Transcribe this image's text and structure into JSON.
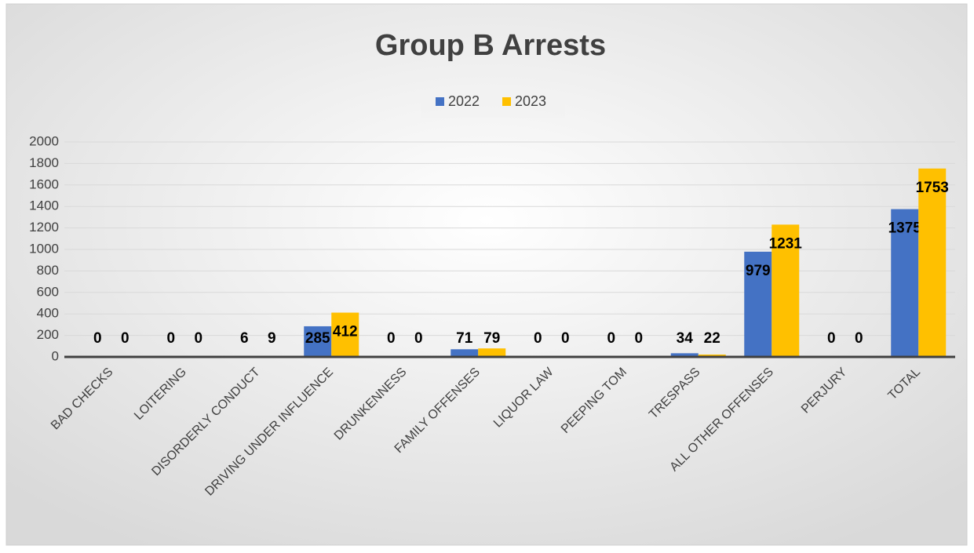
{
  "chart_data": {
    "type": "bar",
    "title": "Group B Arrests",
    "categories": [
      "BAD CHECKS",
      "LOITERING",
      "DISORDERLY CONDUCT",
      "DRIVING UNDER INFLUENCE",
      "DRUNKENNESS",
      "FAMILY OFFENSES",
      "LIQUOR LAW",
      "PEEPING TOM",
      "TRESPASS",
      "ALL OTHER OFFENSES",
      "PERJURY",
      "TOTAL"
    ],
    "series": [
      {
        "name": "2022",
        "color": "#4472c4",
        "values": [
          0,
          0,
          6,
          285,
          0,
          71,
          0,
          0,
          34,
          979,
          0,
          1375
        ]
      },
      {
        "name": "2023",
        "color": "#ffc000",
        "values": [
          0,
          0,
          9,
          412,
          0,
          79,
          0,
          0,
          22,
          1231,
          0,
          1753
        ]
      }
    ],
    "ylim": [
      0,
      2000
    ],
    "yticks": [
      0,
      200,
      400,
      600,
      800,
      1000,
      1200,
      1400,
      1600,
      1800,
      2000
    ],
    "grid": true,
    "legend": "top"
  }
}
